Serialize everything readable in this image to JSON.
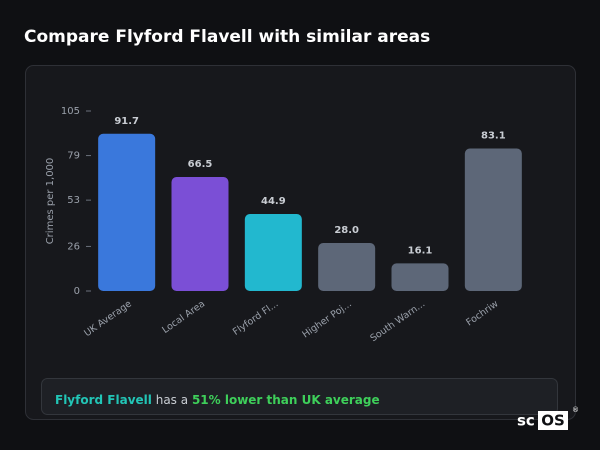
{
  "chart_data": {
    "type": "bar",
    "title": "Compare Flyford Flavell with similar areas",
    "y_label": "Crimes per 1,000",
    "categories": [
      "UK Average",
      "Local Area",
      "Flyford Fl...",
      "Higher Poj...",
      "South Warn...",
      "Fochriw"
    ],
    "values": [
      91.7,
      66.5,
      44.9,
      28.0,
      16.1,
      83.1
    ],
    "value_labels": [
      "91.7",
      "66.5",
      "44.9",
      "28.0",
      "16.1",
      "83.1"
    ],
    "colors": [
      "#3a78dc",
      "#7b4fd6",
      "#22b8cf",
      "#5d6778",
      "#5d6778",
      "#5d6778"
    ],
    "ylim": [
      0,
      105
    ],
    "yticks": [
      0,
      26,
      53,
      79,
      105
    ],
    "grid": false
  },
  "summary": {
    "place": "Flyford Flavell",
    "text": "has a",
    "highlight": "51% lower than UK average"
  },
  "logo": {
    "left": "sc",
    "right": "OS",
    "mark": "®"
  }
}
